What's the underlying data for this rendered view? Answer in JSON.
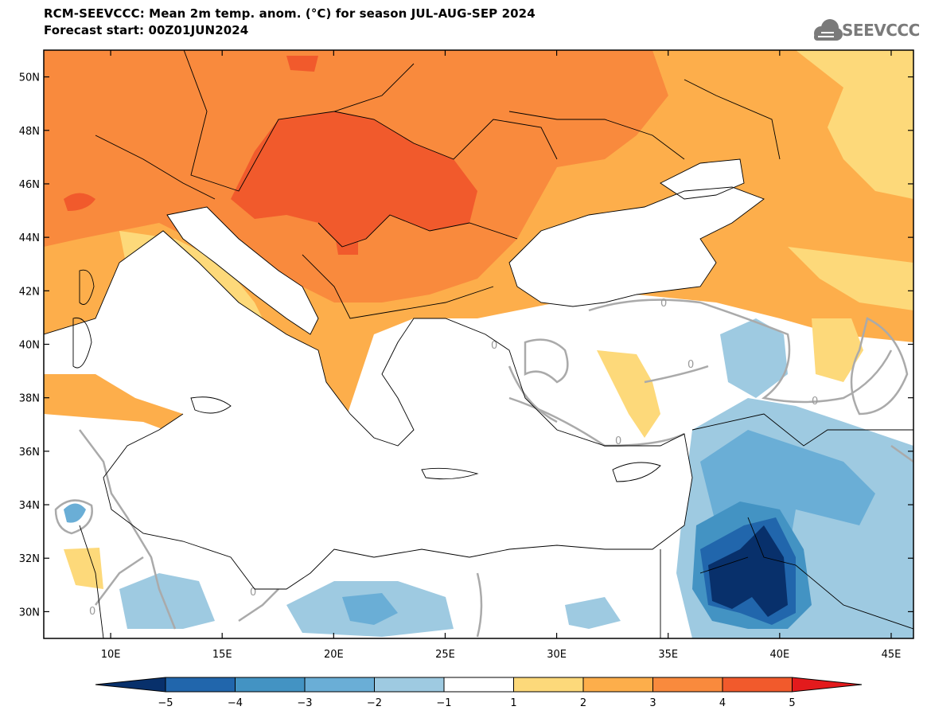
{
  "title": {
    "line1": "RCM-SEEVCCC: Mean 2m temp. anom. (°C) for season JUL-AUG-SEP 2024",
    "line2": "Forecast start: 00Z01JUN2024"
  },
  "logo": {
    "text": "SEEVCCC",
    "icon": "cloud-icon"
  },
  "map": {
    "lon_range": [
      7,
      46
    ],
    "lat_range": [
      29,
      51
    ],
    "lat_ticks": [
      {
        "value": 30,
        "label": "30N"
      },
      {
        "value": 32,
        "label": "32N"
      },
      {
        "value": 34,
        "label": "34N"
      },
      {
        "value": 36,
        "label": "36N"
      },
      {
        "value": 38,
        "label": "38N"
      },
      {
        "value": 40,
        "label": "40N"
      },
      {
        "value": 42,
        "label": "42N"
      },
      {
        "value": 44,
        "label": "44N"
      },
      {
        "value": 46,
        "label": "46N"
      },
      {
        "value": 48,
        "label": "48N"
      },
      {
        "value": 50,
        "label": "50N"
      }
    ],
    "lon_ticks": [
      {
        "value": 10,
        "label": "10E"
      },
      {
        "value": 15,
        "label": "15E"
      },
      {
        "value": 20,
        "label": "20E"
      },
      {
        "value": 25,
        "label": "25E"
      },
      {
        "value": 30,
        "label": "30E"
      },
      {
        "value": 35,
        "label": "35E"
      },
      {
        "value": 40,
        "label": "40E"
      },
      {
        "value": 45,
        "label": "45E"
      }
    ],
    "zero_contour_label": "0"
  },
  "colorbar": {
    "bounds": [
      -5,
      -4,
      -3,
      -2,
      -1,
      1,
      2,
      3,
      4,
      5
    ],
    "labels": [
      "−5",
      "−4",
      "−3",
      "−2",
      "−1",
      "1",
      "2",
      "3",
      "4",
      "5"
    ],
    "colors": [
      "#2166ac",
      "#4393c3",
      "#6aaed6",
      "#9ecae1",
      "#ffffff",
      "#fdd97a",
      "#fdae4b",
      "#f98a3d",
      "#f15a2c"
    ],
    "under_color": "#08306b",
    "over_color": "#e31a1c"
  }
}
